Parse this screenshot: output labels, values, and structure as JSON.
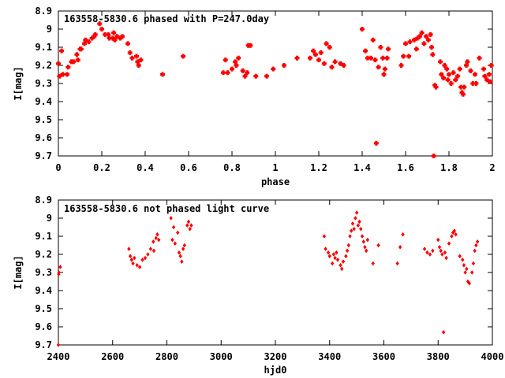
{
  "chart_data": [
    {
      "type": "scatter",
      "title": "163558-5830.6 phased with P=247.0day",
      "xlabel": "phase",
      "ylabel": "I[mag]",
      "xlim": [
        0,
        2
      ],
      "ylim": [
        9.7,
        8.9
      ],
      "y_inverted": true,
      "x_ticks": [
        "0",
        "0.2",
        "0.4",
        "0.6",
        "0.8",
        "1",
        "1.2",
        "1.4",
        "1.6",
        "1.8",
        "2"
      ],
      "y_ticks": [
        "8.9",
        "9",
        "9.1",
        "9.2",
        "9.3",
        "9.4",
        "9.5",
        "9.6",
        "9.7"
      ],
      "marker_color": "#ff0000",
      "marker": "square",
      "points": [
        [
          0.0,
          9.19
        ],
        [
          0.005,
          9.26
        ],
        [
          0.015,
          9.12
        ],
        [
          0.02,
          9.25
        ],
        [
          0.04,
          9.25
        ],
        [
          0.045,
          9.21
        ],
        [
          0.06,
          9.18
        ],
        [
          0.07,
          9.18
        ],
        [
          0.085,
          9.14
        ],
        [
          0.09,
          9.17
        ],
        [
          0.1,
          9.11
        ],
        [
          0.105,
          9.11
        ],
        [
          0.12,
          9.08
        ],
        [
          0.125,
          9.06
        ],
        [
          0.14,
          9.07
        ],
        [
          0.155,
          9.05
        ],
        [
          0.165,
          9.04
        ],
        [
          0.17,
          9.03
        ],
        [
          0.19,
          8.97
        ],
        [
          0.2,
          9.0
        ],
        [
          0.215,
          9.03
        ],
        [
          0.23,
          9.03
        ],
        [
          0.235,
          9.05
        ],
        [
          0.25,
          9.05
        ],
        [
          0.255,
          9.02
        ],
        [
          0.26,
          9.06
        ],
        [
          0.27,
          9.04
        ],
        [
          0.285,
          9.05
        ],
        [
          0.295,
          9.04
        ],
        [
          0.32,
          9.08
        ],
        [
          0.33,
          9.13
        ],
        [
          0.34,
          9.16
        ],
        [
          0.36,
          9.15
        ],
        [
          0.365,
          9.18
        ],
        [
          0.37,
          9.2
        ],
        [
          0.38,
          9.17
        ],
        [
          0.48,
          9.25
        ],
        [
          0.575,
          9.15
        ],
        [
          0.76,
          9.24
        ],
        [
          0.77,
          9.17
        ],
        [
          0.78,
          9.24
        ],
        [
          0.8,
          9.22
        ],
        [
          0.815,
          9.18
        ],
        [
          0.82,
          9.2
        ],
        [
          0.83,
          9.16
        ],
        [
          0.85,
          9.23
        ],
        [
          0.86,
          9.26
        ],
        [
          0.87,
          9.24
        ],
        [
          0.875,
          9.09
        ],
        [
          0.885,
          9.09
        ],
        [
          0.91,
          9.26
        ],
        [
          0.96,
          9.26
        ],
        [
          0.99,
          9.22
        ],
        [
          1.04,
          9.2
        ],
        [
          1.1,
          9.16
        ],
        [
          1.16,
          9.16
        ],
        [
          1.175,
          9.12
        ],
        [
          1.185,
          9.14
        ],
        [
          1.2,
          9.17
        ],
        [
          1.21,
          9.13
        ],
        [
          1.225,
          9.19
        ],
        [
          1.235,
          9.08
        ],
        [
          1.25,
          9.1
        ],
        [
          1.26,
          9.21
        ],
        [
          1.275,
          9.18
        ],
        [
          1.3,
          9.19
        ],
        [
          1.315,
          9.2
        ],
        [
          1.4,
          9.0
        ],
        [
          1.415,
          9.12
        ],
        [
          1.425,
          9.16
        ],
        [
          1.44,
          9.16
        ],
        [
          1.45,
          9.06
        ],
        [
          1.46,
          9.17
        ],
        [
          1.465,
          9.63
        ],
        [
          1.475,
          9.21
        ],
        [
          1.485,
          9.1
        ],
        [
          1.495,
          9.16
        ],
        [
          1.5,
          9.25
        ],
        [
          1.505,
          9.22
        ],
        [
          1.515,
          9.16
        ],
        [
          1.52,
          9.11
        ],
        [
          1.58,
          9.2
        ],
        [
          1.59,
          9.15
        ],
        [
          1.6,
          9.08
        ],
        [
          1.615,
          9.15
        ],
        [
          1.62,
          9.07
        ],
        [
          1.64,
          9.06
        ],
        [
          1.65,
          9.11
        ],
        [
          1.655,
          9.05
        ],
        [
          1.665,
          9.04
        ],
        [
          1.675,
          9.02
        ],
        [
          1.685,
          9.08
        ],
        [
          1.695,
          9.04
        ],
        [
          1.705,
          9.06
        ],
        [
          1.715,
          9.03
        ],
        [
          1.72,
          9.1
        ],
        [
          1.725,
          9.14
        ],
        [
          1.73,
          9.7
        ],
        [
          1.735,
          9.31
        ],
        [
          1.74,
          9.32
        ],
        [
          1.76,
          9.18
        ],
        [
          1.765,
          9.25
        ],
        [
          1.775,
          9.27
        ],
        [
          1.78,
          9.2
        ],
        [
          1.79,
          9.22
        ],
        [
          1.795,
          9.28
        ],
        [
          1.8,
          9.25
        ],
        [
          1.81,
          9.3
        ],
        [
          1.82,
          9.24
        ],
        [
          1.83,
          9.28
        ],
        [
          1.84,
          9.26
        ],
        [
          1.85,
          9.22
        ],
        [
          1.855,
          9.32
        ],
        [
          1.86,
          9.35
        ],
        [
          1.865,
          9.36
        ],
        [
          1.87,
          9.32
        ],
        [
          1.88,
          9.2
        ],
        [
          1.885,
          9.18
        ],
        [
          1.9,
          9.23
        ],
        [
          1.91,
          9.3
        ],
        [
          1.92,
          9.25
        ],
        [
          1.925,
          9.3
        ],
        [
          1.94,
          9.16
        ],
        [
          1.96,
          9.22
        ],
        [
          1.965,
          9.26
        ],
        [
          1.975,
          9.28
        ],
        [
          1.985,
          9.25
        ],
        [
          1.99,
          9.29
        ],
        [
          1.995,
          9.2
        ]
      ]
    },
    {
      "type": "scatter",
      "title": "163558-5830.6 not phased light curve",
      "xlabel": "hjd0",
      "ylabel": "I[mag]",
      "xlim": [
        2400,
        4000
      ],
      "ylim": [
        9.7,
        8.9
      ],
      "y_inverted": true,
      "x_ticks": [
        "2400",
        "2600",
        "2800",
        "3000",
        "3200",
        "3400",
        "3600",
        "3800",
        "4000"
      ],
      "y_ticks": [
        "8.9",
        "9",
        "9.1",
        "9.2",
        "9.3",
        "9.4",
        "9.5",
        "9.6",
        "9.7"
      ],
      "marker_color": "#ff0000",
      "marker": "diamond",
      "points": [
        [
          2400,
          9.7
        ],
        [
          2401,
          9.31
        ],
        [
          2402,
          9.3
        ],
        [
          2407,
          9.27
        ],
        [
          2660,
          9.17
        ],
        [
          2665,
          9.21
        ],
        [
          2670,
          9.23
        ],
        [
          2675,
          9.25
        ],
        [
          2680,
          9.22
        ],
        [
          2690,
          9.26
        ],
        [
          2700,
          9.27
        ],
        [
          2710,
          9.23
        ],
        [
          2720,
          9.22
        ],
        [
          2730,
          9.2
        ],
        [
          2740,
          9.17
        ],
        [
          2750,
          9.13
        ],
        [
          2752,
          9.18
        ],
        [
          2760,
          9.11
        ],
        [
          2765,
          9.09
        ],
        [
          2770,
          9.12
        ],
        [
          2815,
          9.0
        ],
        [
          2820,
          9.12
        ],
        [
          2825,
          9.05
        ],
        [
          2830,
          9.14
        ],
        [
          2840,
          9.08
        ],
        [
          2845,
          9.19
        ],
        [
          2850,
          9.21
        ],
        [
          2855,
          9.24
        ],
        [
          2860,
          9.17
        ],
        [
          2865,
          9.15
        ],
        [
          2875,
          9.04
        ],
        [
          2880,
          9.02
        ],
        [
          2885,
          9.06
        ],
        [
          2890,
          9.04
        ],
        [
          3380,
          9.1
        ],
        [
          3385,
          9.17
        ],
        [
          3395,
          9.19
        ],
        [
          3400,
          9.21
        ],
        [
          3410,
          9.25
        ],
        [
          3415,
          9.2
        ],
        [
          3420,
          9.22
        ],
        [
          3425,
          9.19
        ],
        [
          3430,
          9.23
        ],
        [
          3440,
          9.26
        ],
        [
          3445,
          9.28
        ],
        [
          3450,
          9.24
        ],
        [
          3460,
          9.21
        ],
        [
          3465,
          9.18
        ],
        [
          3470,
          9.15
        ],
        [
          3475,
          9.1
        ],
        [
          3480,
          9.07
        ],
        [
          3485,
          9.03
        ],
        [
          3490,
          9.06
        ],
        [
          3495,
          9.0
        ],
        [
          3500,
          8.97
        ],
        [
          3505,
          9.04
        ],
        [
          3510,
          9.02
        ],
        [
          3515,
          9.06
        ],
        [
          3520,
          9.1
        ],
        [
          3525,
          9.13
        ],
        [
          3530,
          9.16
        ],
        [
          3535,
          9.18
        ],
        [
          3540,
          9.12
        ],
        [
          3560,
          9.25
        ],
        [
          3580,
          9.15
        ],
        [
          3650,
          9.25
        ],
        [
          3660,
          9.16
        ],
        [
          3670,
          9.09
        ],
        [
          3750,
          9.17
        ],
        [
          3760,
          9.19
        ],
        [
          3770,
          9.2
        ],
        [
          3780,
          9.18
        ],
        [
          3800,
          9.12
        ],
        [
          3805,
          9.16
        ],
        [
          3810,
          9.18
        ],
        [
          3815,
          9.2
        ],
        [
          3820,
          9.63
        ],
        [
          3825,
          9.19
        ],
        [
          3830,
          9.22
        ],
        [
          3840,
          9.14
        ],
        [
          3850,
          9.1
        ],
        [
          3855,
          9.08
        ],
        [
          3860,
          9.07
        ],
        [
          3865,
          9.09
        ],
        [
          3880,
          9.21
        ],
        [
          3890,
          9.23
        ],
        [
          3895,
          9.26
        ],
        [
          3900,
          9.3
        ],
        [
          3905,
          9.28
        ],
        [
          3910,
          9.35
        ],
        [
          3915,
          9.36
        ],
        [
          3925,
          9.3
        ],
        [
          3930,
          9.25
        ],
        [
          3935,
          9.18
        ],
        [
          3940,
          9.15
        ],
        [
          3945,
          9.13
        ]
      ]
    }
  ]
}
